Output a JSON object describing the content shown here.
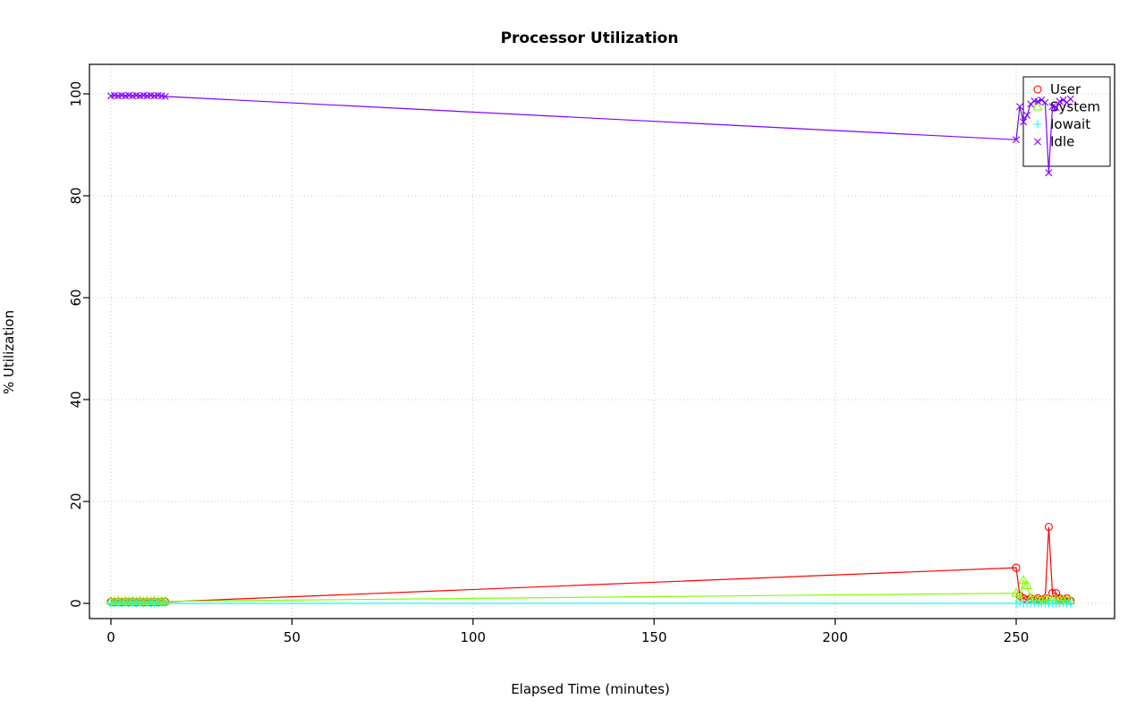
{
  "title": "Processor Utilization",
  "chart_data": {
    "type": "line",
    "title": "Processor Utilization",
    "xlabel": "Elapsed Time (minutes)",
    "ylabel": "% Utilization",
    "xlim": [
      0,
      277
    ],
    "ylim": [
      0,
      100
    ],
    "x_ticks": [
      0,
      50,
      100,
      150,
      200,
      250
    ],
    "y_ticks": [
      0,
      20,
      40,
      60,
      80,
      100
    ],
    "grid": true,
    "legend_position": "top-right",
    "x": [
      0,
      1,
      2,
      3,
      4,
      5,
      6,
      7,
      8,
      9,
      10,
      11,
      12,
      13,
      14,
      15,
      250,
      251,
      252,
      253,
      254,
      255,
      256,
      257,
      258,
      259,
      260,
      261,
      262,
      263,
      264,
      265
    ],
    "series": [
      {
        "name": "User",
        "color": "#FF0000",
        "marker": "circle",
        "values": [
          0.3,
          0.2,
          0.3,
          0.2,
          0.3,
          0.2,
          0.3,
          0.2,
          0.3,
          0.2,
          0.3,
          0.2,
          0.3,
          0.2,
          0.3,
          0.3,
          7,
          1.5,
          1,
          0.7,
          1,
          0.7,
          1,
          0.7,
          1,
          15,
          2,
          2,
          1,
          0.7,
          1,
          0.5
        ]
      },
      {
        "name": "System",
        "color": "#80FF00",
        "marker": "triangle",
        "values": [
          0.4,
          0.3,
          0.4,
          0.3,
          0.4,
          0.3,
          0.4,
          0.3,
          0.4,
          0.3,
          0.4,
          0.3,
          0.4,
          0.3,
          0.4,
          0.4,
          2,
          1,
          4.5,
          3.5,
          1,
          0.7,
          0.5,
          0.5,
          0.7,
          0.5,
          0.5,
          0.7,
          0.5,
          0.5,
          0.7,
          0.5
        ]
      },
      {
        "name": "Iowait",
        "color": "#00FFFF",
        "marker": "plus",
        "values": [
          0,
          0,
          0,
          0,
          0,
          0,
          0,
          0,
          0,
          0,
          0,
          0,
          0,
          0,
          0,
          0,
          0,
          0,
          0,
          0,
          0,
          0,
          0,
          0,
          0,
          0,
          0,
          0,
          0,
          0,
          0,
          0
        ]
      },
      {
        "name": "Idle",
        "color": "#8000FF",
        "marker": "cross",
        "values": [
          99.6,
          99.7,
          99.6,
          99.7,
          99.6,
          99.7,
          99.6,
          99.7,
          99.6,
          99.7,
          99.6,
          99.7,
          99.6,
          99.7,
          99.6,
          99.5,
          91,
          97.5,
          94.5,
          95.8,
          98,
          98.6,
          98.5,
          98.8,
          98.3,
          84.5,
          97.5,
          97.3,
          98.5,
          98.8,
          98.3,
          99
        ]
      }
    ]
  }
}
